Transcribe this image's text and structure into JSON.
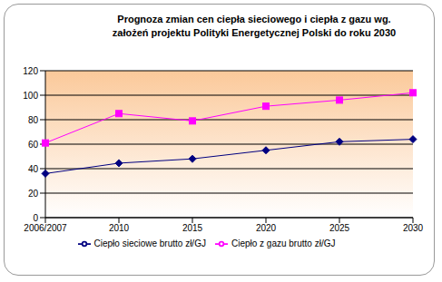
{
  "chart_data": {
    "type": "line",
    "title": "Prognoza zmian cen ciepła sieciowego i ciepła z gazu wg. założeń projektu Polityki Energetycznej Polski do roku 2030",
    "categories": [
      "2006/2007",
      "2010",
      "2015",
      "2020",
      "2025",
      "2030"
    ],
    "series": [
      {
        "name": "Ciepło sieciowe brutto zł/GJ",
        "color": "#000080",
        "marker": "diamond",
        "values": [
          36,
          44.5,
          48,
          55,
          62,
          64
        ]
      },
      {
        "name": "Ciepło z gazu brutto zł/GJ",
        "color": "#ff00ff",
        "marker": "square",
        "values": [
          61,
          85,
          79,
          91,
          96,
          102
        ]
      }
    ],
    "ylim": [
      0,
      120
    ],
    "yticks": [
      0,
      20,
      40,
      60,
      80,
      100,
      120
    ],
    "grid": true,
    "legend": "bottom"
  }
}
